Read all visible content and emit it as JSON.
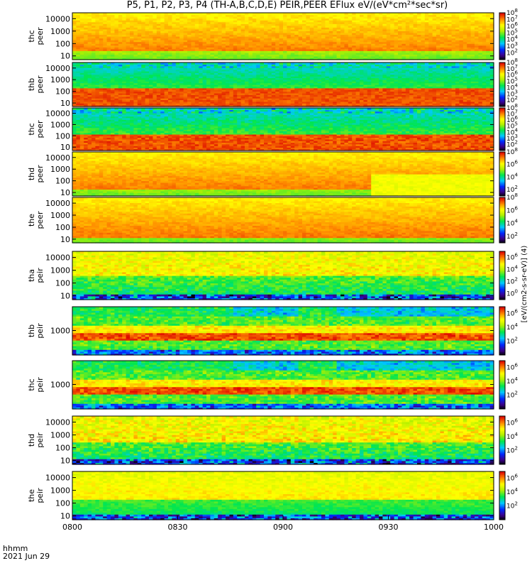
{
  "title": "P5, P1, P2, P3, P4 (TH-A,B,C,D,E) PEIR,PEER EFlux eV/(eV*cm²*sec*sr)",
  "footer": {
    "time_label": "hhmm",
    "date_label": "2021 Jun 29"
  },
  "colorbar_unit": "[eV/(cm2-s-sr-eV)] (4)",
  "colors": {
    "background": "#ffffff",
    "axis": "#000000"
  },
  "chart_data": {
    "type": "heatmap",
    "x_axis": {
      "label": "hhmm",
      "range": [
        "0800",
        "1000"
      ],
      "ticks": [
        "0800",
        "0830",
        "0900",
        "0930",
        "1000"
      ]
    },
    "panels": [
      {
        "name": "the_peer",
        "label": [
          "thc",
          "peer"
        ],
        "y_ticks": [
          "10000",
          "1000",
          "100",
          "10"
        ],
        "y_scale": "log",
        "ylim": [
          5,
          30000
        ],
        "cbar_ticks": [
          8,
          7,
          6,
          5,
          4,
          3,
          2
        ],
        "cbar_range": [
          1,
          8
        ],
        "hot_above": 30,
        "texture": 0.5,
        "noise": 0.2
      },
      {
        "name": "thb_peer",
        "label": [
          "thb",
          "peer"
        ],
        "y_ticks": [
          "10000",
          "1000",
          "100",
          "10"
        ],
        "y_scale": "log",
        "ylim": [
          5,
          30000
        ],
        "cbar_ticks": [
          8,
          7,
          6,
          5,
          4,
          3,
          2
        ],
        "cbar_range": [
          1,
          8
        ],
        "hot_below": 200,
        "texture": 0.3,
        "noise": 0.3
      },
      {
        "name": "thc_peer",
        "label": [
          "thc",
          "peer"
        ],
        "y_ticks": [
          "10000",
          "1000",
          "100",
          "10"
        ],
        "y_scale": "log",
        "ylim": [
          5,
          30000
        ],
        "cbar_ticks": [
          8,
          7,
          6,
          5,
          4,
          3,
          2
        ],
        "cbar_range": [
          1,
          8
        ],
        "hot_below": 150,
        "texture": 0.3,
        "noise": 0.4
      },
      {
        "name": "thd_peer",
        "label": [
          "thd",
          "peer"
        ],
        "y_ticks": [
          "10000",
          "1000",
          "100",
          "10"
        ],
        "y_scale": "log",
        "ylim": [
          5,
          30000
        ],
        "cbar_ticks": [
          8,
          6,
          4,
          2
        ],
        "cbar_range": [
          1,
          8
        ],
        "hot_above": 20,
        "texture": 0.4,
        "noise": 0.2
      },
      {
        "name": "the_peer",
        "label": [
          "the",
          "peer"
        ],
        "y_ticks": [
          "10000",
          "1000",
          "100",
          "10"
        ],
        "y_scale": "log",
        "ylim": [
          5,
          30000
        ],
        "cbar_ticks": [
          8,
          6,
          4,
          2
        ],
        "cbar_range": [
          1,
          8
        ],
        "hot_above": 15,
        "texture": 0.4,
        "noise": 0.2
      },
      {
        "name": "tha_peir",
        "label": [
          "tha",
          "peir"
        ],
        "y_ticks": [
          "10000",
          "1000",
          "100",
          "10"
        ],
        "y_scale": "log",
        "ylim": [
          5,
          30000
        ],
        "cbar_ticks": [
          6,
          4,
          2,
          0
        ],
        "cbar_range": [
          -1,
          7
        ],
        "warm_above": 400,
        "texture": 0.5,
        "noise": 0.6
      },
      {
        "name": "thb_peir",
        "label": [
          "thb",
          "peir"
        ],
        "y_ticks": [
          "1000"
        ],
        "y_scale": "log",
        "ylim": [
          30,
          30000
        ],
        "cbar_ticks": [
          6,
          4,
          2
        ],
        "cbar_range": [
          0,
          7
        ],
        "banded": true,
        "texture": 0.6,
        "noise": 0.5
      },
      {
        "name": "thc_peir",
        "label": [
          "thc",
          "peir"
        ],
        "y_ticks": [
          "1000"
        ],
        "y_scale": "log",
        "ylim": [
          30,
          30000
        ],
        "cbar_ticks": [
          6,
          4,
          2
        ],
        "cbar_range": [
          0,
          7
        ],
        "banded": true,
        "texture": 0.6,
        "noise": 0.5
      },
      {
        "name": "thd_peir",
        "label": [
          "thd",
          "peir"
        ],
        "y_ticks": [
          "10000",
          "1000",
          "100",
          "10"
        ],
        "y_scale": "log",
        "ylim": [
          5,
          30000
        ],
        "cbar_ticks": [
          6,
          4,
          2
        ],
        "cbar_range": [
          0,
          7
        ],
        "warm_above": 300,
        "texture": 0.5,
        "noise": 0.7
      },
      {
        "name": "the_peir",
        "label": [
          "the",
          "peir"
        ],
        "y_ticks": [
          "10000",
          "1000",
          "100",
          "10"
        ],
        "y_scale": "log",
        "ylim": [
          5,
          30000
        ],
        "cbar_ticks": [
          6,
          4,
          2
        ],
        "cbar_range": [
          0,
          7
        ],
        "warm_above": 200,
        "texture": 0.4,
        "noise": 0.3
      }
    ]
  }
}
